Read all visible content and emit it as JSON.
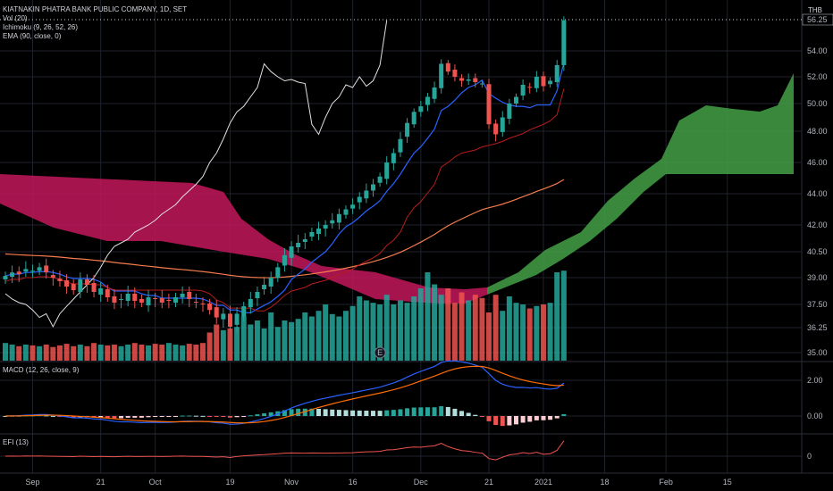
{
  "header": {
    "symbol_line": "KIATNAKIN PHATRA BANK PUBLIC COMPANY, 1D, SET",
    "currency": "THB",
    "vol_legend": "Vol (20)",
    "ichimoku_legend": "Ichimoku (9, 26, 52, 26)",
    "ema_legend": "EMA (90, close, 0)",
    "macd_legend": "MACD (12, 26, close, 9)",
    "efi_legend": "EFI (13)",
    "earnings_marker": "E"
  },
  "colors": {
    "up": "#26a69a",
    "down": "#ef5350",
    "kumo_bear": "#c2185b",
    "kumo_bull": "#43a047",
    "tenkan": "#2962ff",
    "kijun": "#b71c1c",
    "chikou": "#e0e0e0",
    "ema": "#f57c4d",
    "macd": "#2962ff",
    "signal": "#ff6d00",
    "efi": "#ef5350",
    "grid": "#1e222d"
  },
  "chart_data": {
    "type": "candlestick",
    "price_axis_ticks": [
      "56.25",
      "54.00",
      "52.00",
      "50.00",
      "48.00",
      "46.00",
      "44.00",
      "42.00",
      "40.50",
      "39.00",
      "37.50",
      "36.25",
      "35.00"
    ],
    "current_price": "56.25",
    "macd_axis_ticks": [
      "2.00",
      "0.00"
    ],
    "efi_axis_ticks": [
      "0"
    ],
    "x_ticks": [
      {
        "label": "Sep",
        "i": 4
      },
      {
        "label": "21",
        "i": 14
      },
      {
        "label": "Oct",
        "i": 22
      },
      {
        "label": "19",
        "i": 33
      },
      {
        "label": "Nov",
        "i": 42
      },
      {
        "label": "16",
        "i": 51
      },
      {
        "label": "Dec",
        "i": 61
      },
      {
        "label": "21",
        "i": 71
      },
      {
        "label": "2021",
        "i": 79
      },
      {
        "label": "18",
        "i": 88
      },
      {
        "label": "Feb",
        "i": 97
      },
      {
        "label": "15",
        "i": 106
      }
    ],
    "closes": [
      39.1,
      39.3,
      39.2,
      39.5,
      39.4,
      39.6,
      39.3,
      39.0,
      38.8,
      38.5,
      38.3,
      38.9,
      38.6,
      38.2,
      38.4,
      37.9,
      37.6,
      37.8,
      38.1,
      37.7,
      37.6,
      37.9,
      37.8,
      37.6,
      37.7,
      37.9,
      38.1,
      37.8,
      37.6,
      37.5,
      37.2,
      36.8,
      37.0,
      36.3,
      37.0,
      37.4,
      37.8,
      38.2,
      38.6,
      39.0,
      39.6,
      40.3,
      40.8,
      41.0,
      41.2,
      41.6,
      41.8,
      42.0,
      42.3,
      42.7,
      43.0,
      43.3,
      43.8,
      44.2,
      44.6,
      45.1,
      46.0,
      46.6,
      47.5,
      48.6,
      49.4,
      49.8,
      50.5,
      51.2,
      53.0,
      52.4,
      52.0,
      51.7,
      51.8,
      51.6,
      51.5,
      48.5,
      47.8,
      49.0,
      50.0,
      50.5,
      51.4,
      51.2,
      52.0,
      51.3,
      51.7,
      52.9,
      56.2
    ],
    "volume_relative": [
      0.22,
      0.2,
      0.18,
      0.2,
      0.19,
      0.18,
      0.2,
      0.17,
      0.19,
      0.21,
      0.18,
      0.2,
      0.18,
      0.22,
      0.2,
      0.19,
      0.2,
      0.18,
      0.2,
      0.22,
      0.2,
      0.19,
      0.21,
      0.2,
      0.22,
      0.2,
      0.19,
      0.21,
      0.2,
      0.22,
      0.35,
      0.45,
      0.38,
      0.4,
      0.42,
      0.55,
      0.45,
      0.5,
      0.4,
      0.6,
      0.42,
      0.5,
      0.48,
      0.52,
      0.6,
      0.55,
      0.62,
      0.7,
      0.58,
      0.55,
      0.62,
      0.68,
      0.8,
      0.75,
      0.72,
      0.7,
      0.82,
      0.7,
      0.75,
      0.72,
      0.8,
      0.9,
      1.1,
      0.95,
      0.82,
      0.9,
      0.72,
      0.85,
      0.75,
      0.82,
      0.78,
      0.6,
      0.82,
      0.62,
      0.8,
      0.72,
      0.7,
      0.65,
      0.68,
      0.7,
      0.72,
      1.1,
      1.12
    ]
  }
}
